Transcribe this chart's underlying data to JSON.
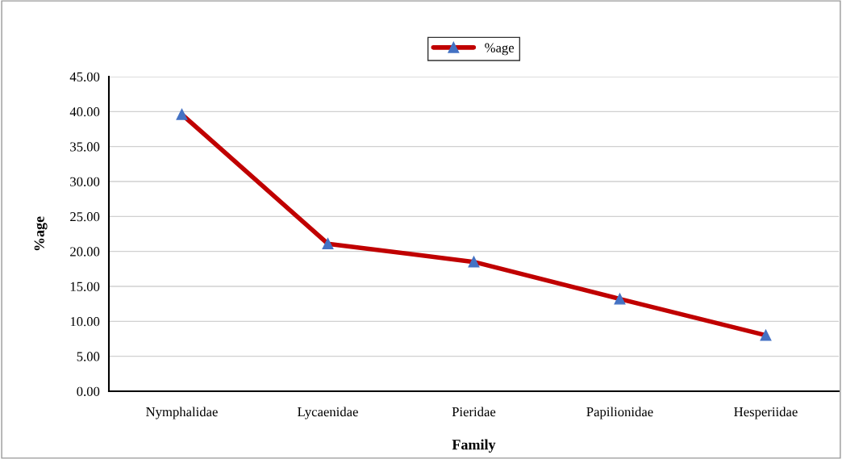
{
  "chart_data": {
    "type": "line",
    "xlabel": "Family",
    "ylabel": "%age",
    "categories": [
      "Nymphalidae",
      "Lycaenidae",
      "Pieridae",
      "Papilionidae",
      "Hesperiidae"
    ],
    "series": [
      {
        "name": "%age",
        "color": "#c00000",
        "values": [
          39.6,
          21.1,
          18.5,
          13.2,
          8.0
        ]
      }
    ],
    "ylim": [
      0,
      45
    ],
    "yticks": [
      {
        "value": 0,
        "label": "0.00"
      },
      {
        "value": 5,
        "label": "5.00"
      },
      {
        "value": 10,
        "label": "10.00"
      },
      {
        "value": 15,
        "label": "15.00"
      },
      {
        "value": 20,
        "label": "20.00"
      },
      {
        "value": 25,
        "label": "25.00"
      },
      {
        "value": 30,
        "label": "30.00"
      },
      {
        "value": 35,
        "label": "35.00"
      },
      {
        "value": 40,
        "label": "40.00"
      },
      {
        "value": 45,
        "label": "45.00"
      }
    ],
    "grid": "y",
    "legend": "top",
    "marker": "triangle",
    "line_style": "solid"
  }
}
